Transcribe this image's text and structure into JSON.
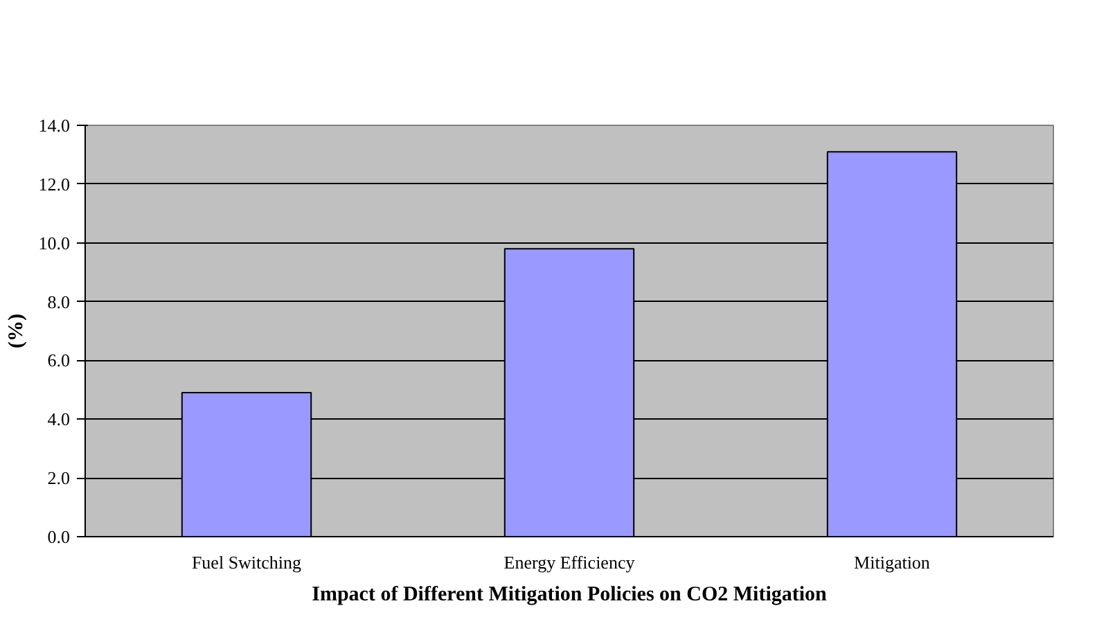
{
  "chart_data": {
    "type": "bar",
    "xlabel": "Impact of Different Mitigation Policies on CO2 Mitigation",
    "ylabel": "(%)",
    "categories": [
      "Fuel Switching",
      "Energy Efficiency",
      "Mitigation"
    ],
    "values": [
      4.9,
      9.8,
      13.1
    ],
    "color": "#9999ff",
    "ylim": [
      0,
      14
    ],
    "yticks": [
      {
        "value": 0,
        "label": "0.0"
      },
      {
        "value": 2,
        "label": "2.0"
      },
      {
        "value": 4,
        "label": "4.0"
      },
      {
        "value": 6,
        "label": "6.0"
      },
      {
        "value": 8,
        "label": "8.0"
      },
      {
        "value": 10,
        "label": "10.0"
      },
      {
        "value": 12,
        "label": "12.0"
      },
      {
        "value": 14,
        "label": "14.0"
      }
    ],
    "grid": "y"
  }
}
